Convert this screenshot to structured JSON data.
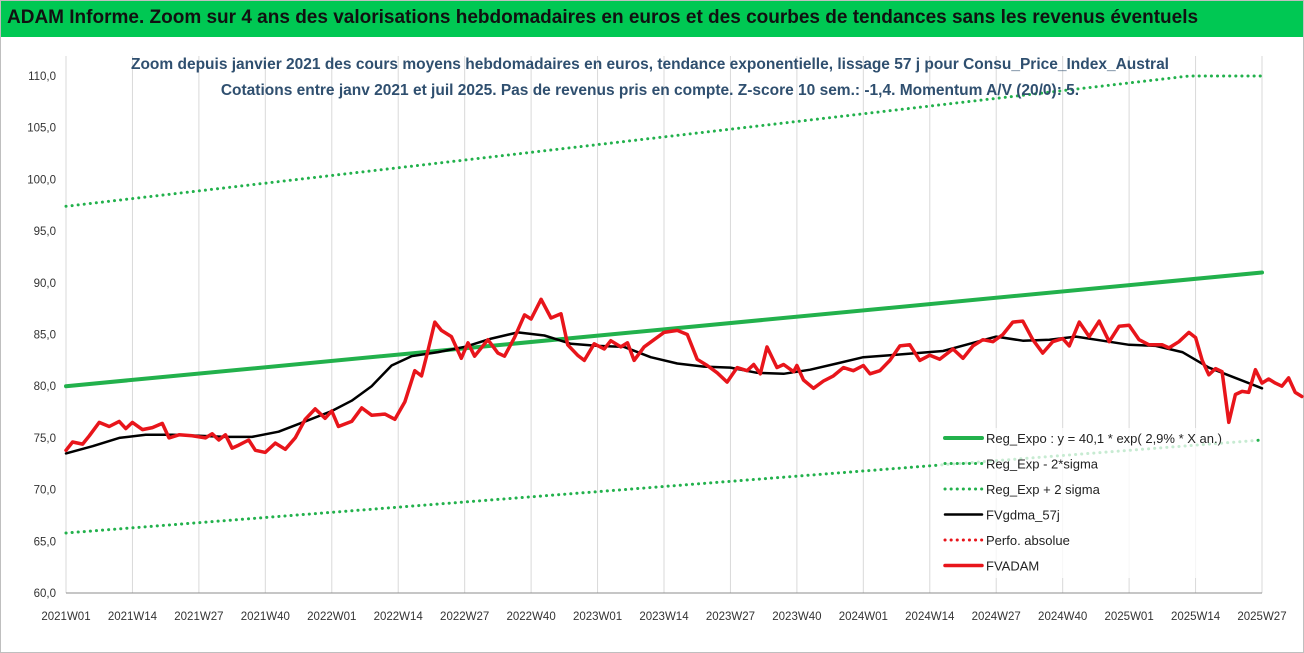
{
  "banner": {
    "title": "ADAM Informe. Zoom sur 4 ans des valorisations hebdomadaires en euros et des courbes de tendances sans les revenus éventuels"
  },
  "chart_data": {
    "type": "line",
    "title_line1": "Zoom depuis janvier 2021 des cours moyens hebdomadaires en euros, tendance exponentielle, lissage 57 j pour Consu_Price_Index_Austral",
    "title_line2": "Cotations entre janv 2021 et juil 2025. Pas de revenus pris en compte. Z-score 10 sem.: -1,4. Momentum A/V (20/0): 5.",
    "ylim": [
      60,
      110
    ],
    "yticks": [
      "60,0",
      "65,0",
      "70,0",
      "75,0",
      "80,0",
      "85,0",
      "90,0",
      "95,0",
      "100,0",
      "105,0",
      "110,0"
    ],
    "x_labels": [
      "2021W01",
      "2021W14",
      "2021W27",
      "2021W40",
      "2022W01",
      "2022W14",
      "2022W27",
      "2022W40",
      "2023W01",
      "2023W14",
      "2023W27",
      "2023W40",
      "2024W01",
      "2024W14",
      "2024W27",
      "2024W40",
      "2025W01",
      "2025W14",
      "2025W27"
    ],
    "grid": "vertical",
    "legend_position": "bottom-right",
    "series": [
      {
        "name": "Reg_Expo : y = 40,1 * exp( 2,9% * X an.)",
        "color": "#22b14c",
        "style": "solid",
        "knots": [
          [
            0,
            80.0
          ],
          [
            18,
            91.0
          ]
        ]
      },
      {
        "name": "Reg_Exp - 2*sigma",
        "color": "#22b14c",
        "style": "dotted",
        "knots": [
          [
            0,
            65.8
          ],
          [
            18,
            74.8
          ]
        ]
      },
      {
        "name": "Reg_Exp + 2 sigma",
        "color": "#22b14c",
        "style": "dotted",
        "knots": [
          [
            0,
            97.4
          ],
          [
            16.9,
            110.0
          ],
          [
            18,
            110.0
          ]
        ]
      },
      {
        "name": "FVgdma_57j",
        "color": "#000000",
        "style": "solid",
        "knots": [
          [
            0,
            73.5
          ],
          [
            0.4,
            74.2
          ],
          [
            0.8,
            75.0
          ],
          [
            1.2,
            75.3
          ],
          [
            1.6,
            75.3
          ],
          [
            2.0,
            75.2
          ],
          [
            2.4,
            75.1
          ],
          [
            2.8,
            75.1
          ],
          [
            3.2,
            75.6
          ],
          [
            3.6,
            76.6
          ],
          [
            4.0,
            77.6
          ],
          [
            4.3,
            78.6
          ],
          [
            4.6,
            80.0
          ],
          [
            4.9,
            82.0
          ],
          [
            5.2,
            82.9
          ],
          [
            5.6,
            83.3
          ],
          [
            6.0,
            83.8
          ],
          [
            6.4,
            84.6
          ],
          [
            6.8,
            85.2
          ],
          [
            7.2,
            84.9
          ],
          [
            7.6,
            84.1
          ],
          [
            8.0,
            83.9
          ],
          [
            8.4,
            83.8
          ],
          [
            8.8,
            82.8
          ],
          [
            9.2,
            82.2
          ],
          [
            9.6,
            81.9
          ],
          [
            10.0,
            81.8
          ],
          [
            10.4,
            81.3
          ],
          [
            10.8,
            81.2
          ],
          [
            11.2,
            81.6
          ],
          [
            11.6,
            82.2
          ],
          [
            12.0,
            82.8
          ],
          [
            12.4,
            83.0
          ],
          [
            12.8,
            83.2
          ],
          [
            13.2,
            83.4
          ],
          [
            13.6,
            84.1
          ],
          [
            14.0,
            84.8
          ],
          [
            14.4,
            84.4
          ],
          [
            14.8,
            84.5
          ],
          [
            15.2,
            84.8
          ],
          [
            15.6,
            84.4
          ],
          [
            16.0,
            84.0
          ],
          [
            16.4,
            83.9
          ],
          [
            16.8,
            83.3
          ],
          [
            17.2,
            81.8
          ],
          [
            17.6,
            80.8
          ],
          [
            18.0,
            79.8
          ]
        ]
      },
      {
        "name": "Perfo. absolue",
        "color": "#e8151b",
        "style": "dotted",
        "knots": []
      },
      {
        "name": "FVADAM",
        "color": "#e8151b",
        "style": "solid",
        "knots": [
          [
            0,
            73.8
          ],
          [
            0.1,
            74.6
          ],
          [
            0.25,
            74.4
          ],
          [
            0.35,
            75.2
          ],
          [
            0.5,
            76.5
          ],
          [
            0.65,
            76.1
          ],
          [
            0.8,
            76.6
          ],
          [
            0.9,
            75.9
          ],
          [
            1.0,
            76.5
          ],
          [
            1.15,
            75.8
          ],
          [
            1.3,
            76.0
          ],
          [
            1.45,
            76.4
          ],
          [
            1.55,
            75.0
          ],
          [
            1.7,
            75.3
          ],
          [
            1.9,
            75.2
          ],
          [
            2.1,
            75.0
          ],
          [
            2.2,
            75.4
          ],
          [
            2.3,
            74.8
          ],
          [
            2.4,
            75.3
          ],
          [
            2.5,
            74.0
          ],
          [
            2.6,
            74.3
          ],
          [
            2.75,
            74.8
          ],
          [
            2.85,
            73.8
          ],
          [
            3.0,
            73.6
          ],
          [
            3.15,
            74.5
          ],
          [
            3.3,
            73.9
          ],
          [
            3.45,
            75.0
          ],
          [
            3.6,
            76.8
          ],
          [
            3.75,
            77.8
          ],
          [
            3.9,
            76.9
          ],
          [
            4.0,
            77.6
          ],
          [
            4.1,
            76.1
          ],
          [
            4.3,
            76.6
          ],
          [
            4.45,
            77.9
          ],
          [
            4.6,
            77.2
          ],
          [
            4.8,
            77.3
          ],
          [
            4.95,
            76.8
          ],
          [
            5.1,
            78.5
          ],
          [
            5.25,
            81.5
          ],
          [
            5.35,
            81.0
          ],
          [
            5.45,
            83.5
          ],
          [
            5.55,
            86.2
          ],
          [
            5.65,
            85.4
          ],
          [
            5.8,
            84.8
          ],
          [
            5.95,
            82.7
          ],
          [
            6.05,
            84.2
          ],
          [
            6.15,
            82.9
          ],
          [
            6.35,
            84.5
          ],
          [
            6.5,
            83.2
          ],
          [
            6.6,
            82.9
          ],
          [
            6.75,
            84.7
          ],
          [
            6.9,
            86.9
          ],
          [
            7.0,
            86.5
          ],
          [
            7.15,
            88.4
          ],
          [
            7.3,
            86.6
          ],
          [
            7.45,
            87.0
          ],
          [
            7.55,
            84.0
          ],
          [
            7.7,
            83.0
          ],
          [
            7.8,
            82.5
          ],
          [
            7.95,
            84.1
          ],
          [
            8.1,
            83.6
          ],
          [
            8.2,
            84.4
          ],
          [
            8.35,
            83.8
          ],
          [
            8.45,
            84.2
          ],
          [
            8.55,
            82.5
          ],
          [
            8.7,
            83.8
          ],
          [
            8.85,
            84.5
          ],
          [
            9.0,
            85.2
          ],
          [
            9.2,
            85.4
          ],
          [
            9.35,
            85.0
          ],
          [
            9.5,
            82.6
          ],
          [
            9.65,
            82.0
          ],
          [
            9.8,
            81.3
          ],
          [
            9.95,
            80.4
          ],
          [
            10.1,
            81.8
          ],
          [
            10.25,
            81.5
          ],
          [
            10.35,
            82.1
          ],
          [
            10.45,
            81.2
          ],
          [
            10.55,
            83.8
          ],
          [
            10.7,
            81.8
          ],
          [
            10.8,
            82.1
          ],
          [
            10.95,
            81.4
          ],
          [
            11.0,
            82.0
          ],
          [
            11.1,
            80.6
          ],
          [
            11.25,
            79.8
          ],
          [
            11.4,
            80.5
          ],
          [
            11.55,
            81.0
          ],
          [
            11.7,
            81.8
          ],
          [
            11.85,
            81.5
          ],
          [
            12.0,
            82.0
          ],
          [
            12.1,
            81.2
          ],
          [
            12.25,
            81.5
          ],
          [
            12.4,
            82.5
          ],
          [
            12.55,
            83.9
          ],
          [
            12.7,
            84.0
          ],
          [
            12.85,
            82.5
          ],
          [
            13.0,
            83.0
          ],
          [
            13.15,
            82.6
          ],
          [
            13.35,
            83.6
          ],
          [
            13.5,
            82.7
          ],
          [
            13.65,
            83.9
          ],
          [
            13.8,
            84.5
          ],
          [
            13.95,
            84.3
          ],
          [
            14.1,
            85.0
          ],
          [
            14.25,
            86.2
          ],
          [
            14.4,
            86.3
          ],
          [
            14.55,
            84.5
          ],
          [
            14.7,
            83.2
          ],
          [
            14.85,
            84.3
          ],
          [
            15.0,
            84.6
          ],
          [
            15.1,
            83.9
          ],
          [
            15.25,
            86.2
          ],
          [
            15.4,
            84.8
          ],
          [
            15.55,
            86.3
          ],
          [
            15.7,
            84.3
          ],
          [
            15.85,
            85.8
          ],
          [
            16.0,
            85.9
          ],
          [
            16.15,
            84.5
          ],
          [
            16.3,
            84.0
          ],
          [
            16.5,
            84.0
          ],
          [
            16.6,
            83.7
          ],
          [
            16.75,
            84.3
          ],
          [
            16.9,
            85.2
          ],
          [
            17.0,
            84.7
          ],
          [
            17.1,
            82.5
          ],
          [
            17.2,
            81.1
          ],
          [
            17.3,
            81.7
          ],
          [
            17.4,
            81.4
          ],
          [
            17.5,
            76.5
          ],
          [
            17.6,
            79.2
          ],
          [
            17.7,
            79.5
          ],
          [
            17.8,
            79.4
          ],
          [
            17.9,
            81.6
          ],
          [
            18.0,
            80.3
          ],
          [
            18.1,
            80.7
          ],
          [
            18.2,
            80.3
          ],
          [
            18.3,
            80.0
          ],
          [
            18.4,
            80.8
          ],
          [
            18.5,
            79.4
          ],
          [
            18.6,
            79.0
          ]
        ]
      }
    ]
  }
}
